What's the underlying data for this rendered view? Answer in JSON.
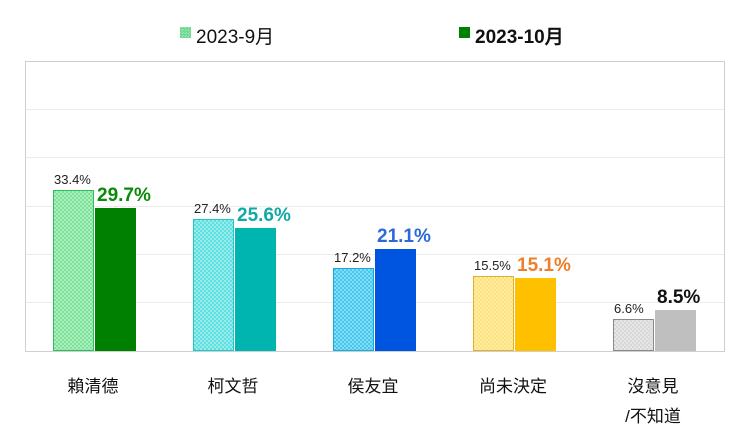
{
  "chart_data": {
    "type": "bar",
    "title": "",
    "xlabel": "",
    "ylabel": "",
    "ylim": [
      0,
      60
    ],
    "grid": true,
    "legend_position": "top",
    "categories": [
      "賴清德",
      "柯文哲",
      "侯友宜",
      "尚未決定",
      "沒意見/不知道"
    ],
    "series": [
      {
        "name": "2023-9月",
        "values": [
          33.4,
          27.4,
          17.2,
          15.5,
          6.6
        ],
        "labels": [
          "33.4%",
          "27.4%",
          "17.2%",
          "15.5%",
          "6.6%"
        ]
      },
      {
        "name": "2023-10月",
        "values": [
          29.7,
          25.6,
          21.1,
          15.1,
          8.5
        ],
        "labels": [
          "29.7%",
          "25.6%",
          "21.1%",
          "15.1%",
          "8.5%"
        ]
      }
    ]
  },
  "legend": {
    "prev": {
      "label": "2023-9月",
      "color": "#6fd88f"
    },
    "curr": {
      "label": "2023-10月",
      "color": "#008000"
    }
  },
  "categories": [
    {
      "line1": "賴清德",
      "line2": ""
    },
    {
      "line1": "柯文哲",
      "line2": ""
    },
    {
      "line1": "侯友宜",
      "line2": ""
    },
    {
      "line1": "尚未決定",
      "line2": ""
    },
    {
      "line1": "沒意見",
      "line2": "/不知道"
    }
  ],
  "colors": {
    "prev": [
      "#7ee39a",
      "#5fe0e0",
      "#45c8f0",
      "#fde27a",
      "#d8d8d8"
    ],
    "prev_edge": [
      "#2fbf5f",
      "#25c5c5",
      "#1aa8d8",
      "#e0b030",
      "#8a8a8a"
    ],
    "curr": [
      "#008000",
      "#00b5b0",
      "#0055e0",
      "#ffc000",
      "#bfbfbf"
    ],
    "curr_label": [
      "#0a8a0a",
      "#12a8a8",
      "#2a6ad8",
      "#ef7f2a",
      "#111111"
    ]
  }
}
